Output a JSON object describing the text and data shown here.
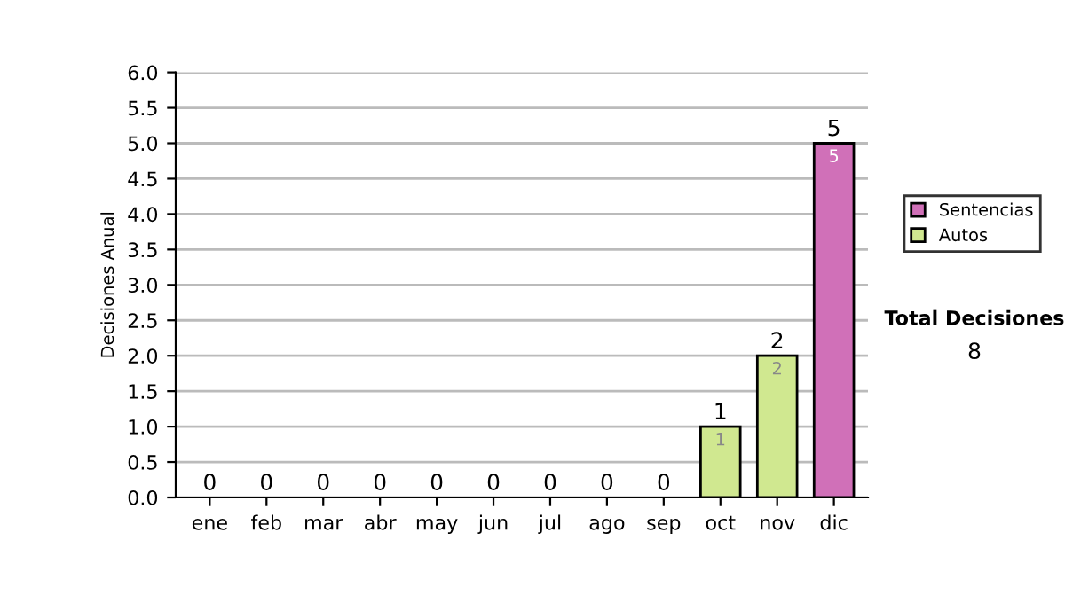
{
  "chart_data": {
    "type": "bar",
    "stacked": true,
    "categories": [
      "ene",
      "feb",
      "mar",
      "abr",
      "may",
      "jun",
      "jul",
      "ago",
      "sep",
      "oct",
      "nov",
      "dic"
    ],
    "series": [
      {
        "name": "Sentencias",
        "color": "#d070b8",
        "values": [
          0,
          0,
          0,
          0,
          0,
          0,
          0,
          0,
          0,
          0,
          0,
          5
        ],
        "value_labels": [
          null,
          null,
          null,
          null,
          null,
          null,
          null,
          null,
          null,
          null,
          null,
          "5"
        ]
      },
      {
        "name": "Autos",
        "color": "#d0e890",
        "values": [
          0,
          0,
          0,
          0,
          0,
          0,
          0,
          0,
          0,
          1,
          2,
          0
        ],
        "value_labels": [
          null,
          null,
          null,
          null,
          null,
          null,
          null,
          null,
          null,
          "1",
          "2",
          null
        ]
      }
    ],
    "totals": [
      "0",
      "0",
      "0",
      "0",
      "0",
      "0",
      "0",
      "0",
      "0",
      "1",
      "2",
      "5"
    ],
    "ylabel": "Decisiones Anual",
    "ylim": [
      0,
      6
    ],
    "yticks": [
      {
        "value": 0,
        "label": "0.0"
      },
      {
        "value": 0.5,
        "label": "0.5"
      },
      {
        "value": 1,
        "label": "1.0"
      },
      {
        "value": 1.5,
        "label": "1.5"
      },
      {
        "value": 2,
        "label": "2.0"
      },
      {
        "value": 2.5,
        "label": "2.5"
      },
      {
        "value": 3,
        "label": "3.0"
      },
      {
        "value": 3.5,
        "label": "3.5"
      },
      {
        "value": 4,
        "label": "4.0"
      },
      {
        "value": 4.5,
        "label": "4.5"
      },
      {
        "value": 5,
        "label": "5.0"
      },
      {
        "value": 5.5,
        "label": "5.5"
      },
      {
        "value": 6,
        "label": "6.0"
      }
    ],
    "grid": "y",
    "legend": "right",
    "annotations": [
      "Total Decisiones",
      "8"
    ]
  }
}
